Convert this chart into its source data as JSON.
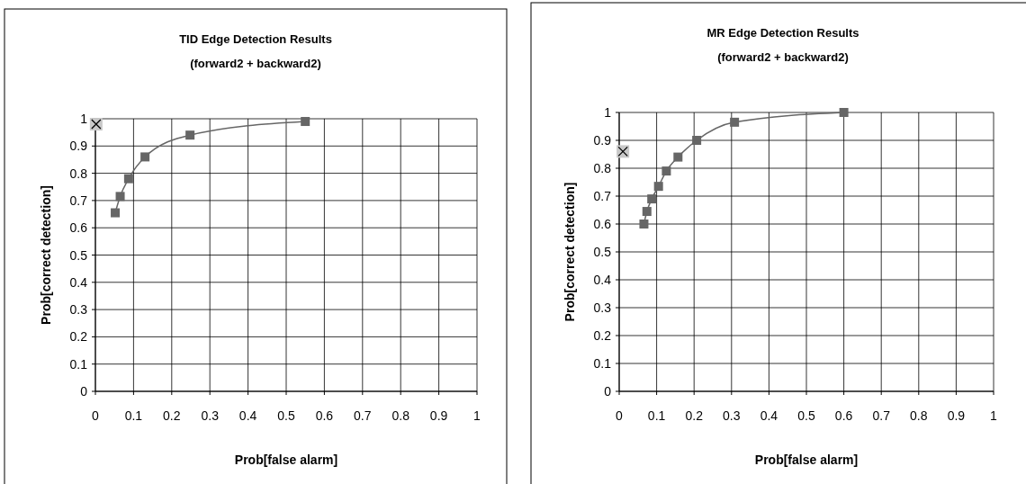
{
  "chart_data": [
    {
      "type": "line",
      "title": "TID Edge Detection Results",
      "subtitle": "(forward2 + backward2)",
      "xlabel": "Prob[false alarm]",
      "ylabel": "Prob[correct detection]",
      "xlim": [
        0,
        1
      ],
      "ylim": [
        0,
        1
      ],
      "xticks": [
        0,
        0.1,
        0.2,
        0.3,
        0.4,
        0.5,
        0.6,
        0.7,
        0.8,
        0.9,
        1
      ],
      "yticks": [
        0,
        0.1,
        0.2,
        0.3,
        0.4,
        0.5,
        0.6,
        0.7,
        0.8,
        0.9,
        1
      ],
      "grid": true,
      "series": [
        {
          "color": "#666666",
          "marker": "square",
          "x": [
            0.052,
            0.065,
            0.087,
            0.13,
            0.248,
            0.55
          ],
          "values": [
            0.655,
            0.715,
            0.78,
            0.86,
            0.94,
            0.99
          ]
        },
        {
          "type": "scatter",
          "color": "#000000",
          "marker": "cross",
          "x": [
            0.002
          ],
          "values": [
            0.98
          ]
        }
      ]
    },
    {
      "type": "line",
      "title": "MR Edge Detection Results",
      "subtitle": "(forward2 + backward2)",
      "xlabel": "Prob[false alarm]",
      "ylabel": "Prob[correct detection]",
      "xlim": [
        0,
        1
      ],
      "ylim": [
        0,
        1
      ],
      "xticks": [
        0,
        0.1,
        0.2,
        0.3,
        0.4,
        0.5,
        0.6,
        0.7,
        0.8,
        0.9,
        1
      ],
      "yticks": [
        0,
        0.1,
        0.2,
        0.3,
        0.4,
        0.5,
        0.6,
        0.7,
        0.8,
        0.9,
        1
      ],
      "grid": true,
      "series": [
        {
          "color": "#666666",
          "marker": "square",
          "x": [
            0.066,
            0.074,
            0.087,
            0.105,
            0.126,
            0.157,
            0.207,
            0.308,
            0.6
          ],
          "values": [
            0.6,
            0.645,
            0.69,
            0.735,
            0.79,
            0.84,
            0.9,
            0.965,
            1.0
          ]
        },
        {
          "type": "scatter",
          "color": "#000000",
          "marker": "cross",
          "x": [
            0.01
          ],
          "values": [
            0.86
          ]
        }
      ]
    }
  ]
}
